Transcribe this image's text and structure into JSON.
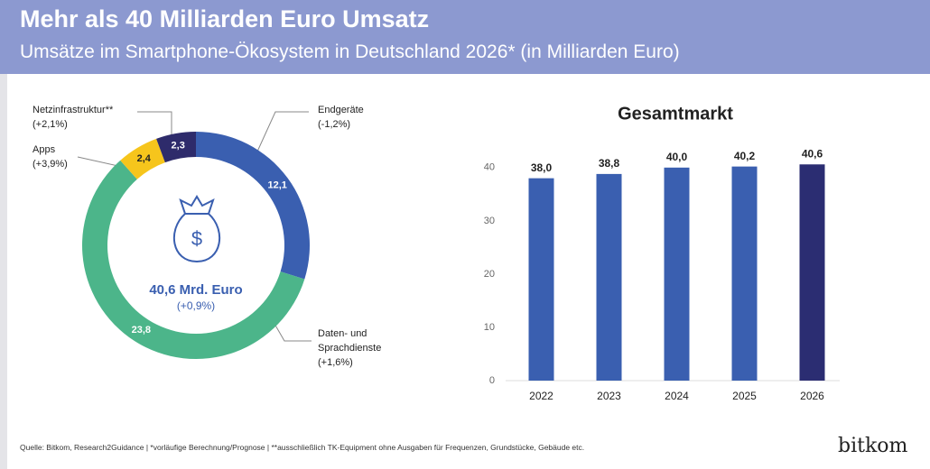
{
  "header": {
    "title": "Mehr als 40 Milliarden Euro Umsatz",
    "subtitle": "Umsätze im Smartphone-Ökosystem in Deutschland 2026* (in Milliarden Euro)"
  },
  "chart_data": [
    {
      "type": "donut",
      "categories": [
        "Endgeräte",
        "Daten- und Sprachdienste",
        "Apps",
        "Netzinfrastruktur**"
      ],
      "values": [
        12.1,
        23.8,
        2.4,
        2.3
      ],
      "value_labels": [
        "12,1",
        "23,8",
        "2,4",
        "2,3"
      ],
      "changes": [
        "(-1,2%)",
        "(+1,6%)",
        "(+3,9%)",
        "(+2,1%)"
      ],
      "colors": [
        "#3a5fb0",
        "#4cb58a",
        "#f6c51c",
        "#2e2b6b"
      ],
      "center_label": "40,6 Mrd. Euro",
      "center_sublabel": "(+0,9%)"
    },
    {
      "type": "bar",
      "title": "Gesamtmarkt",
      "categories": [
        "2022",
        "2023",
        "2024",
        "2025",
        "2026"
      ],
      "values": [
        38.0,
        38.8,
        40.0,
        40.2,
        40.6
      ],
      "value_labels": [
        "38,0",
        "38,8",
        "40,0",
        "40,2",
        "40,6"
      ],
      "colors": [
        "#3a5fb0",
        "#3a5fb0",
        "#3a5fb0",
        "#3a5fb0",
        "#2b2d72"
      ],
      "ylim": [
        0,
        42
      ],
      "yticks": [
        0,
        10,
        20,
        30,
        40
      ],
      "grid": false
    }
  ],
  "footer": {
    "source": "Quelle: Bitkom, Research2Guidance | *vorläufige Berechnung/Prognose | **ausschließlich TK-Equipment ohne Ausgaben für Frequenzen, Grundstücke, Gebäude etc.",
    "logo": "bitkom"
  }
}
